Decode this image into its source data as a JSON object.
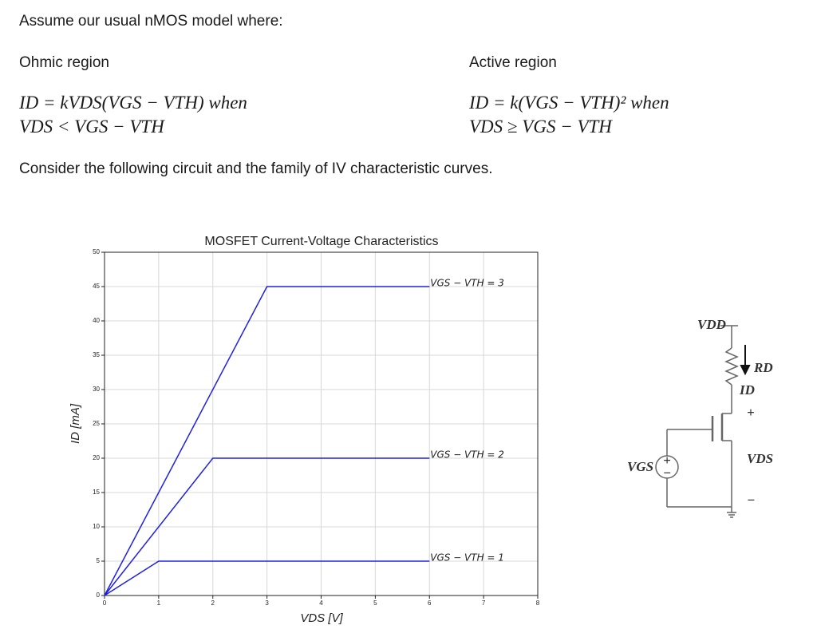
{
  "intro": "Assume our usual nMOS model where:",
  "ohmic": {
    "heading": "Ohmic region",
    "line1": "ID = kVDS(VGS − VTH) when",
    "line2": "VDS < VGS − VTH"
  },
  "active": {
    "heading": "Active region",
    "line1": "ID = k(VGS − VTH)² when",
    "line2": "VDS ≥ VGS − VTH"
  },
  "prompt": "Consider the following circuit and the family of IV characteristic curves.",
  "chart_data": {
    "type": "line",
    "title": "MOSFET Current-Voltage Characteristics",
    "x_label": "VDS [V]",
    "y_label": "ID [mA]",
    "xlim": [
      0,
      8
    ],
    "ylim": [
      0,
      50
    ],
    "xticks": [
      0,
      1,
      2,
      3,
      4,
      5,
      6,
      7,
      8
    ],
    "yticks": [
      0,
      5,
      10,
      15,
      20,
      25,
      30,
      35,
      40,
      45,
      50
    ],
    "grid": true,
    "series": [
      {
        "name": "VGS − VTH = 1",
        "color": "#2020e8",
        "x": [
          0,
          1,
          6
        ],
        "values": [
          0,
          5,
          5
        ]
      },
      {
        "name": "VGS − VTH = 2",
        "color": "#2020e8",
        "x": [
          0,
          2,
          6
        ],
        "values": [
          0,
          20,
          20
        ]
      },
      {
        "name": "VGS − VTH = 3",
        "color": "#2020e8",
        "x": [
          0,
          3,
          6
        ],
        "values": [
          0,
          45,
          45
        ]
      }
    ]
  },
  "circuit": {
    "vdd": "VDD",
    "rd": "RD",
    "id": "ID",
    "plus": "+",
    "vds": "VDS",
    "minus": "−",
    "vgs": "VGS",
    "src_plus": "+",
    "src_minus": "−"
  }
}
